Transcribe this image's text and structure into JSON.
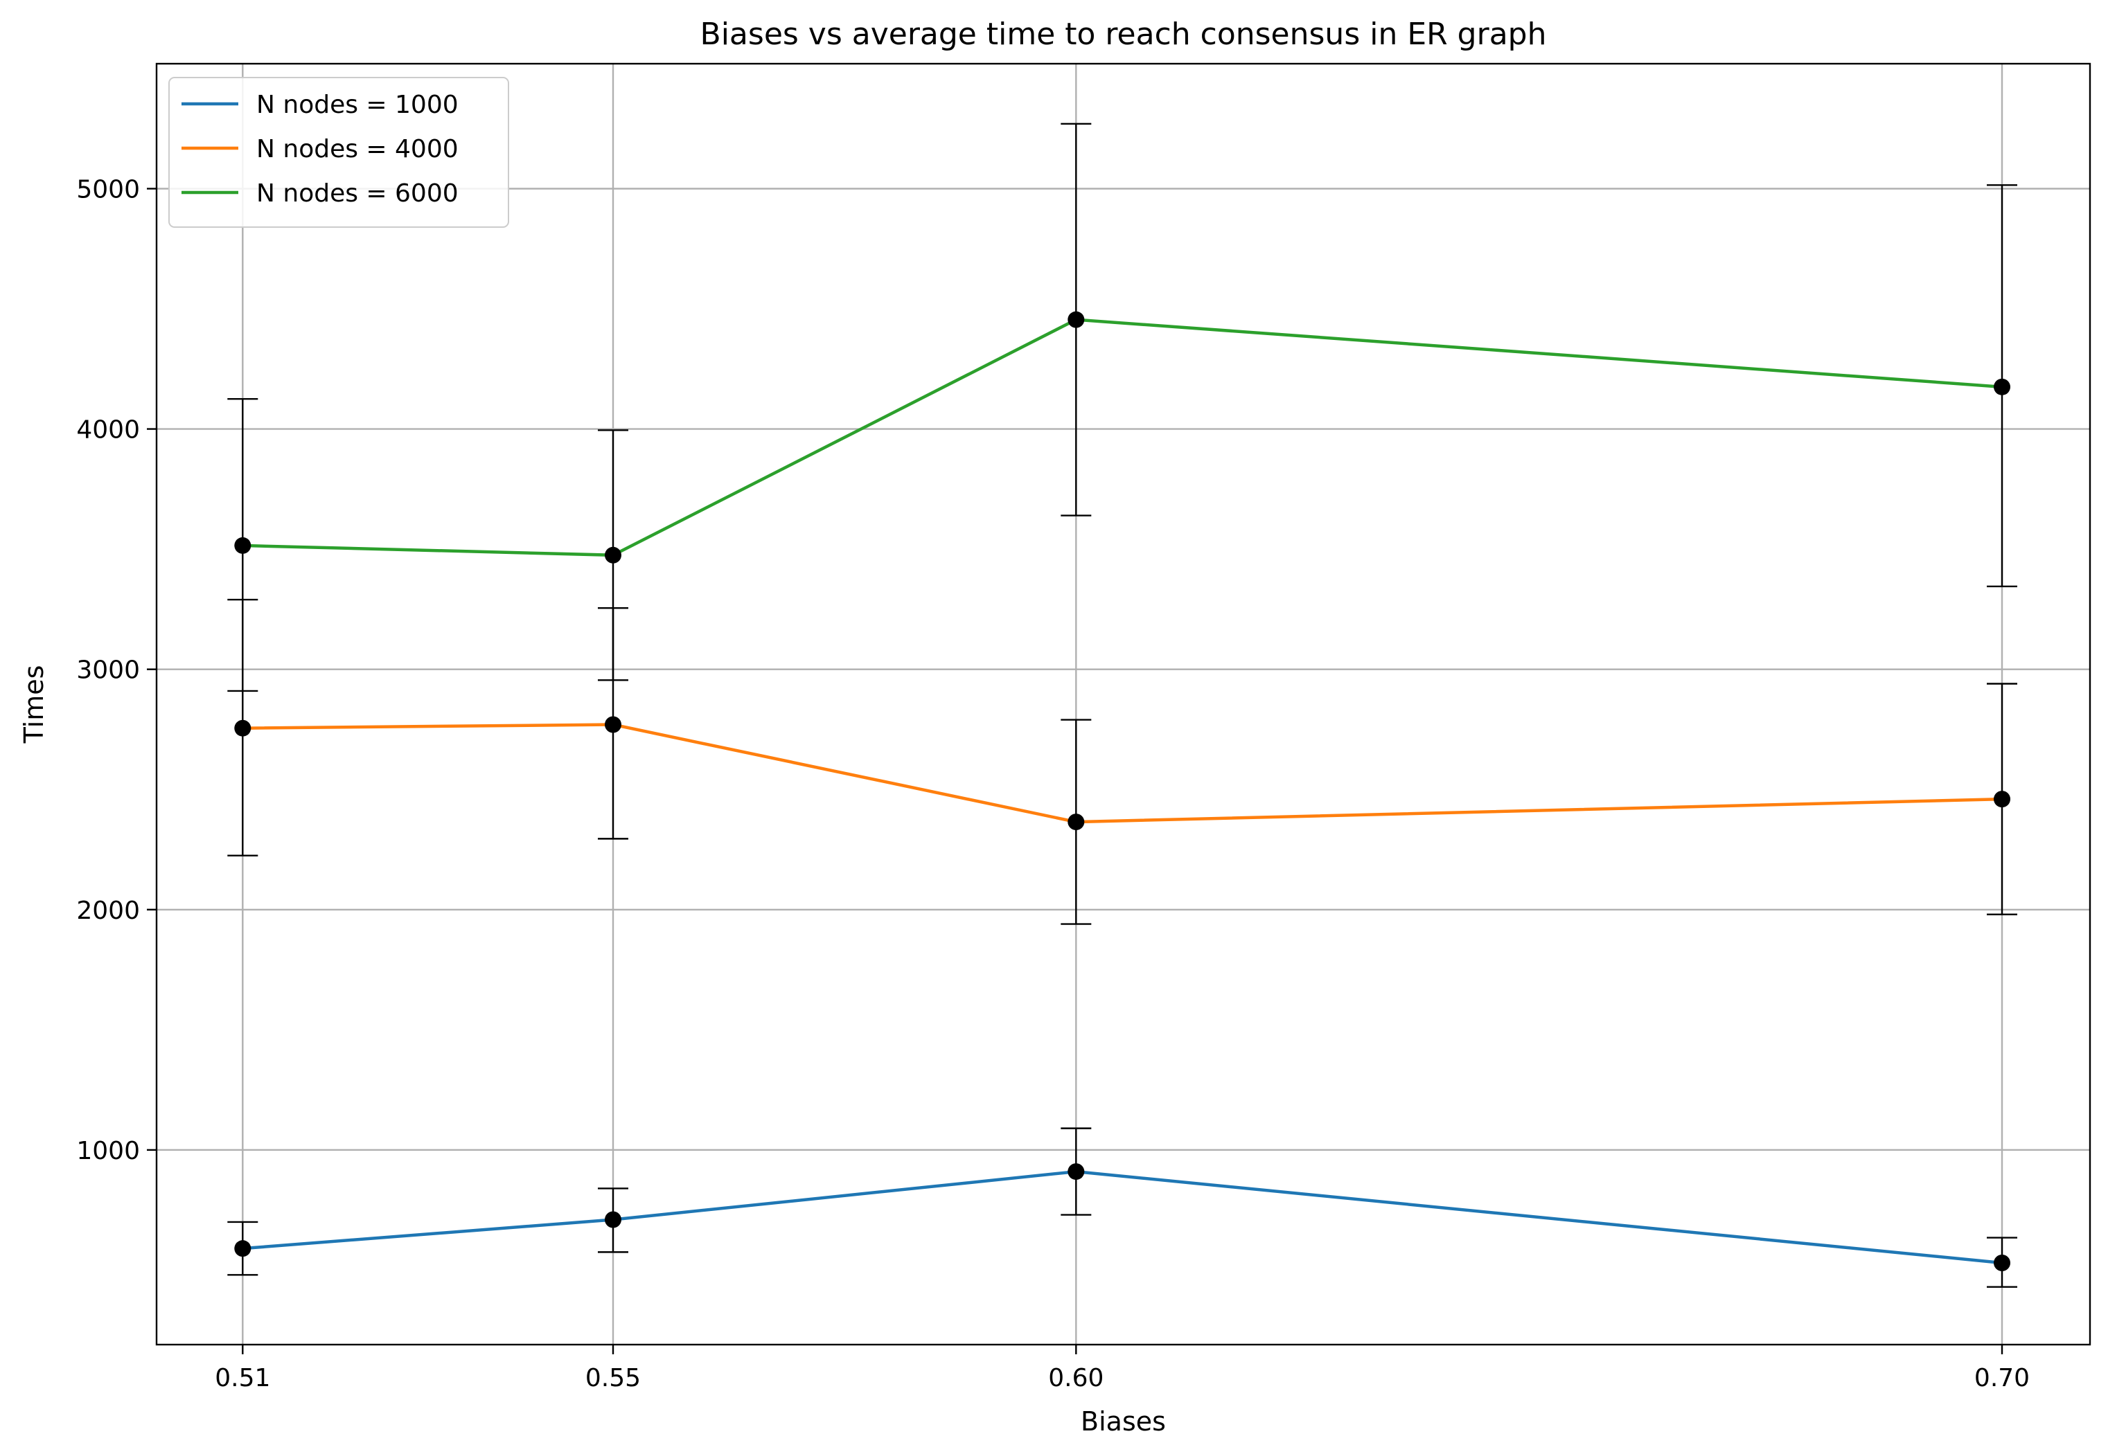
{
  "chart_data": {
    "type": "line",
    "title": "Biases vs average time to reach consensus in ER graph",
    "xlabel": "Biases",
    "ylabel": "Times",
    "x": [
      0.51,
      0.55,
      0.6,
      0.7
    ],
    "x_tick_labels": [
      "0.51",
      "0.55",
      "0.60",
      "0.70"
    ],
    "xlim": [
      0.5007,
      0.7095
    ],
    "ylim": [
      190,
      5520
    ],
    "y_ticks": [
      1000,
      2000,
      3000,
      4000,
      5000
    ],
    "y_tick_labels": [
      "1000",
      "2000",
      "3000",
      "4000",
      "5000"
    ],
    "grid": true,
    "legend_position": "upper left",
    "series": [
      {
        "name": "N nodes = 1000",
        "color": "#1f77b4",
        "values": [
          590,
          710,
          910,
          530
        ],
        "error_low": [
          480,
          575,
          730,
          430
        ],
        "error_high": [
          700,
          840,
          1090,
          635
        ]
      },
      {
        "name": "N nodes = 4000",
        "color": "#ff7f0e",
        "values": [
          2755,
          2770,
          2365,
          2460
        ],
        "error_low": [
          2225,
          2295,
          1940,
          1980
        ],
        "error_high": [
          3290,
          3255,
          2790,
          2940
        ]
      },
      {
        "name": "N nodes = 6000",
        "color": "#2ca02c",
        "values": [
          3515,
          3475,
          4455,
          4175
        ],
        "error_low": [
          2910,
          2955,
          3640,
          3345
        ],
        "error_high": [
          4125,
          3995,
          5270,
          5015
        ]
      }
    ],
    "marker_color": "#000000",
    "error_bar_color": "#000000"
  }
}
